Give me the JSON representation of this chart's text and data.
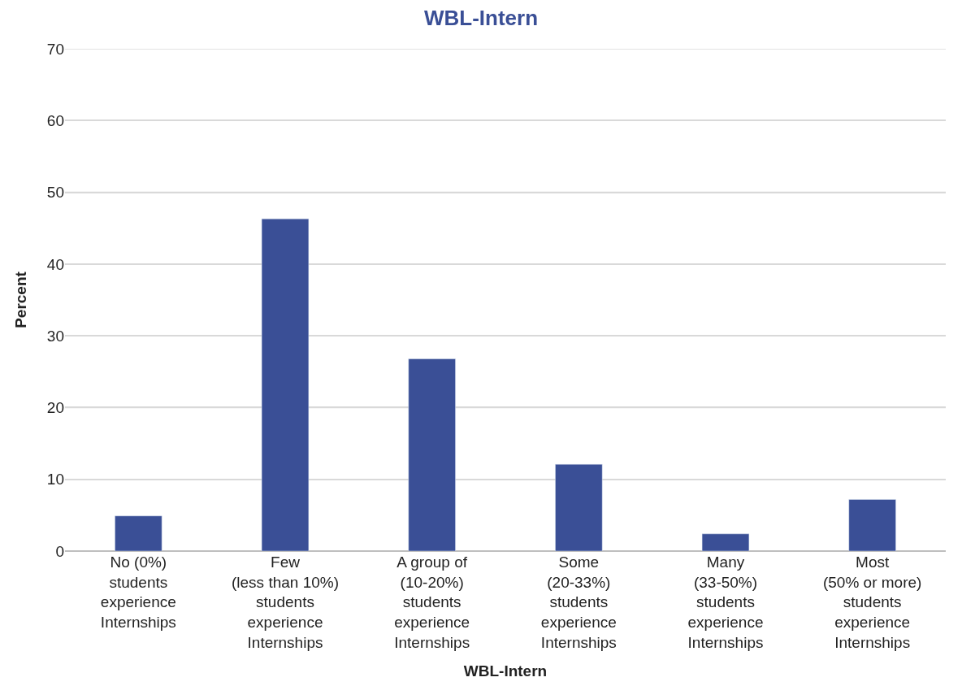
{
  "chart_data": {
    "type": "bar",
    "title": "WBL-Intern",
    "xlabel": "WBL-Intern",
    "ylabel": "Percent",
    "categories": [
      "No (0%)\nstudents\nexperience\nInternships",
      "Few\n(less than 10%)\nstudents\nexperience\nInternships",
      "A group of\n(10-20%)\nstudents\nexperience\nInternships",
      "Some\n(20-33%)\nstudents\nexperience\nInternships",
      "Many\n(33-50%)\nstudents\nexperience\nInternships",
      "Most\n(50% or more)\nstudents\nexperience\nInternships"
    ],
    "values": [
      4.9,
      46.3,
      26.8,
      12.1,
      2.4,
      7.2
    ],
    "color": "#3a4f96",
    "ylim": [
      0,
      70
    ],
    "yticks": [
      0,
      10,
      20,
      30,
      40,
      50,
      60,
      70
    ],
    "grid": "y"
  }
}
